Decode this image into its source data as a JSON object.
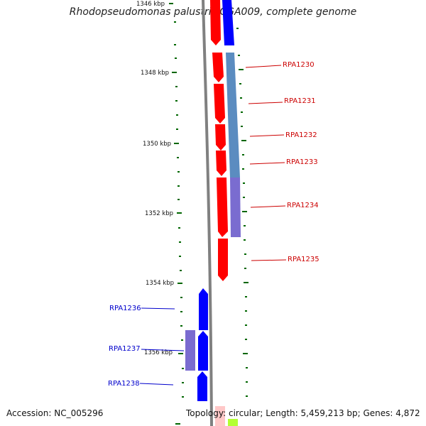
{
  "title": "Rhodopseudomonas palustris CGA009, complete genome",
  "footer": {
    "accession": "Accession: NC_005296",
    "summary": "Topology: circular; Length: 5,459,213 bp; Genes: 4,872"
  },
  "colors": {
    "forward_gene": "#ff0000",
    "reverse_gene": "#0000ff",
    "forward_label": "#cc0000",
    "reverse_label": "#0000cc",
    "operon_blue": "#5b8cc0",
    "operon_purple": "#7a6cd0",
    "backbone": "#808080",
    "tick": "#006600"
  },
  "kbp_labels": [
    "1346 kbp",
    "1348 kbp",
    "1350 kbp",
    "1352 kbp",
    "1354 kbp",
    "1356 kbp"
  ],
  "genes": [
    {
      "label": "RPA1230",
      "strand": "forward"
    },
    {
      "label": "RPA1231",
      "strand": "forward"
    },
    {
      "label": "RPA1232",
      "strand": "forward"
    },
    {
      "label": "RPA1233",
      "strand": "forward"
    },
    {
      "label": "RPA1234",
      "strand": "forward"
    },
    {
      "label": "RPA1235",
      "strand": "forward"
    },
    {
      "label": "RPA1236",
      "strand": "reverse"
    },
    {
      "label": "RPA1237",
      "strand": "reverse"
    },
    {
      "label": "RPA1238",
      "strand": "reverse"
    }
  ]
}
